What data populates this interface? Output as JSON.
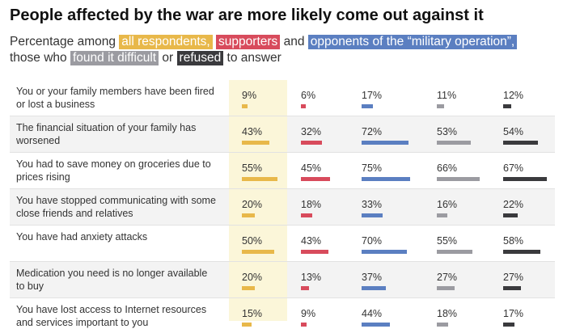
{
  "title": "People affected by the war are more likely come out against it",
  "subtitle": {
    "prefix": "Percentage among",
    "all_label": "all respondents,",
    "supporters_label": "supporters",
    "and_word": "and",
    "opponents_label": "opponents of the “military operation”,",
    "those_who": "those who",
    "difficult_label": "found it difficult",
    "or_word": "or",
    "refused_label": "refused",
    "suffix": "to answer"
  },
  "colors": {
    "all": "#e8b84a",
    "supporters": "#d84b5c",
    "opponents": "#5b7fc1",
    "difficult": "#9b9ba1",
    "refused": "#3a3a3d",
    "highlight": "#fbf6d9"
  },
  "chart_data": {
    "type": "table",
    "series": [
      {
        "name": "all respondents",
        "key": "all"
      },
      {
        "name": "supporters",
        "key": "supporters"
      },
      {
        "name": "opponents of the “military operation”",
        "key": "opponents"
      },
      {
        "name": "found it difficult",
        "key": "difficult"
      },
      {
        "name": "refused",
        "key": "refused"
      }
    ],
    "rows": [
      {
        "label": "You or your family members have been fired or lost a business",
        "values": [
          9,
          6,
          17,
          11,
          12
        ],
        "text": [
          "9%",
          "6%",
          "17%",
          "11%",
          "12%"
        ]
      },
      {
        "label": "The financial situation of your family has worsened",
        "values": [
          43,
          32,
          72,
          53,
          54
        ],
        "text": [
          "43%",
          "32%",
          "72%",
          "53%",
          "54%"
        ]
      },
      {
        "label": "You had to save money on groceries due to prices rising",
        "values": [
          55,
          45,
          75,
          66,
          67
        ],
        "text": [
          "55%",
          "45%",
          "75%",
          "66%",
          "67%"
        ]
      },
      {
        "label": "You have stopped communicating with some close friends and relatives",
        "values": [
          20,
          18,
          33,
          16,
          22
        ],
        "text": [
          "20%",
          "18%",
          "33%",
          "16%",
          "22%"
        ]
      },
      {
        "label": "You have had anxiety attacks",
        "values": [
          50,
          43,
          70,
          55,
          58
        ],
        "text": [
          "50%",
          "43%",
          "70%",
          "55%",
          "58%"
        ]
      },
      {
        "label": "Medication you need is no longer available to buy",
        "values": [
          20,
          13,
          37,
          27,
          27
        ],
        "text": [
          "20%",
          "13%",
          "37%",
          "27%",
          "27%"
        ]
      },
      {
        "label": "You have lost access to Internet resources and services important to you",
        "values": [
          15,
          9,
          44,
          18,
          17
        ],
        "text": [
          "15%",
          "9%",
          "44%",
          "18%",
          "17%"
        ]
      }
    ]
  }
}
